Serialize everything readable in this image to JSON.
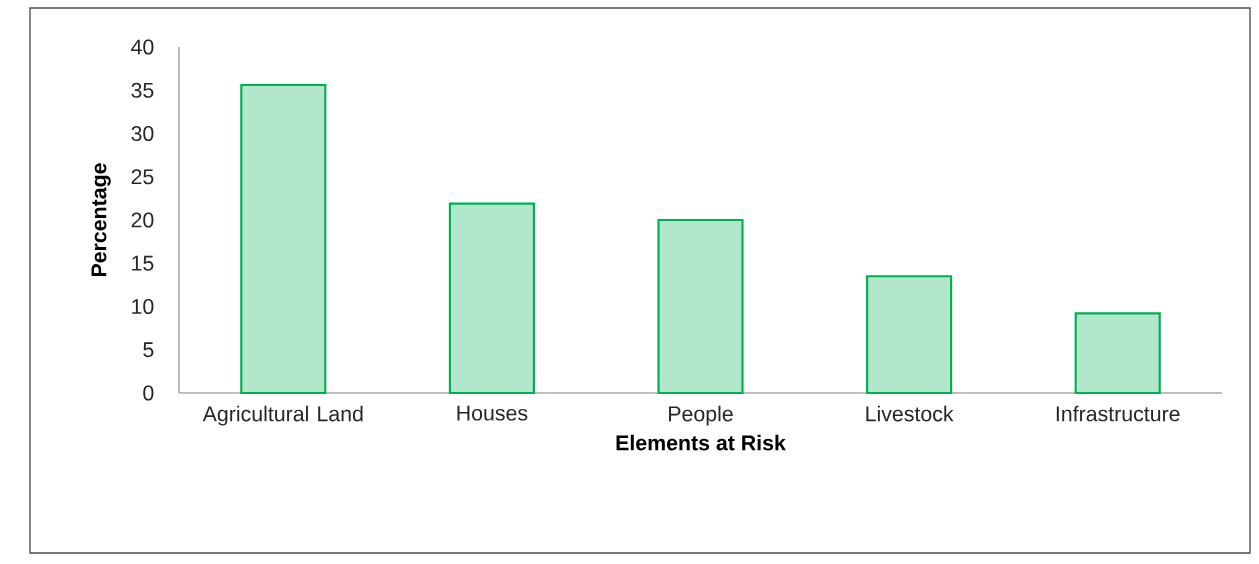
{
  "chart_data": {
    "type": "bar",
    "xlabel": "Elements at Risk",
    "ylabel": "Percentage",
    "categories": [
      "Agricultural Land",
      "Houses",
      "People",
      "Livestock",
      "Infrastructure"
    ],
    "values": [
      35.6,
      21.9,
      20.0,
      13.5,
      9.2
    ],
    "color": "#00b050",
    "ylim": [
      0,
      40
    ],
    "yticks": [
      0,
      5,
      10,
      15,
      20,
      25,
      30,
      35,
      40
    ]
  }
}
